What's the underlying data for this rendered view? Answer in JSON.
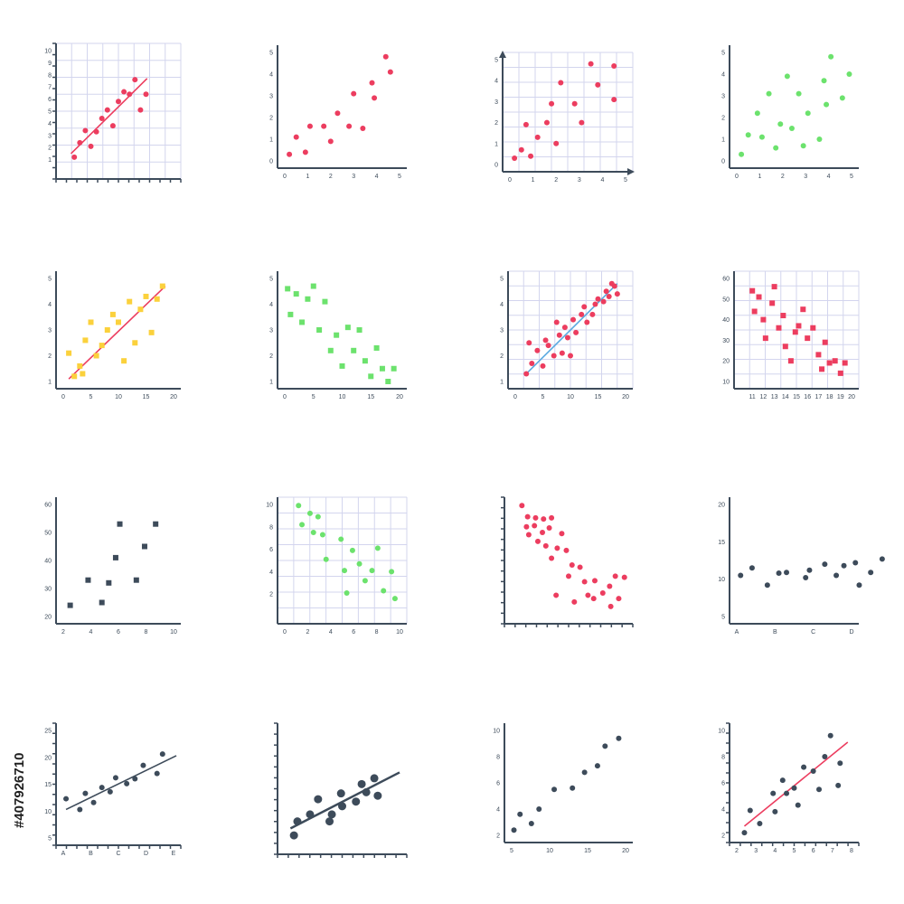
{
  "stock_id": "#407926710",
  "colors": {
    "axis": "#3d4b5a",
    "grid": "#d3d5ee",
    "red": "#ec3d5f",
    "yellow": "#fbd13c",
    "green": "#6ce26d",
    "blue": "#5aa9e0",
    "dark": "#3d4b5a"
  },
  "chart_data": [
    {
      "type": "scatter",
      "marker": "circle",
      "color": "red",
      "grid": true,
      "axis_style": "ticks",
      "xlim": [
        0,
        10
      ],
      "ylim": [
        0,
        10
      ],
      "x_ticks": [],
      "y_ticks": [
        1,
        2,
        3,
        4,
        5,
        6,
        7,
        8,
        9,
        10
      ],
      "x": [
        1,
        1.5,
        2,
        2.5,
        3,
        3.5,
        4,
        4.5,
        5,
        5.5,
        6,
        6.5,
        7,
        7.5
      ],
      "y": [
        1.2,
        2.4,
        3.4,
        2.1,
        3.3,
        4.4,
        5.1,
        3.8,
        5.8,
        6.6,
        6.4,
        7.6,
        5.1,
        6.4
      ],
      "trend": [
        [
          0.7,
          1.5
        ],
        [
          7.6,
          7.7
        ]
      ],
      "trend_color": "red"
    },
    {
      "type": "scatter",
      "marker": "circle",
      "color": "red",
      "grid": false,
      "axis_style": "plain",
      "xlim": [
        0,
        5
      ],
      "ylim": [
        0,
        5
      ],
      "x_ticks": [
        0,
        1,
        2,
        3,
        4,
        5
      ],
      "y_ticks": [
        0,
        1,
        2,
        3,
        4,
        5
      ],
      "x": [
        0.2,
        0.5,
        0.9,
        1.1,
        1.7,
        2.0,
        2.3,
        2.8,
        3.0,
        3.4,
        3.8,
        3.9,
        4.4,
        4.6
      ],
      "y": [
        0.3,
        1.1,
        0.4,
        1.6,
        1.6,
        0.9,
        2.2,
        1.6,
        3.1,
        1.5,
        3.6,
        2.9,
        4.8,
        4.1
      ]
    },
    {
      "type": "scatter",
      "marker": "circle",
      "color": "red",
      "grid": true,
      "axis_style": "arrows",
      "xlim": [
        0,
        5
      ],
      "ylim": [
        0,
        5
      ],
      "x_ticks": [
        0,
        1,
        2,
        3,
        4,
        5
      ],
      "y_ticks": [
        0,
        1,
        2,
        3,
        4,
        5
      ],
      "x": [
        0.2,
        0.5,
        0.7,
        0.9,
        1.2,
        1.6,
        1.8,
        2.0,
        2.2,
        2.8,
        3.1,
        3.5,
        3.8,
        4.5,
        4.5
      ],
      "y": [
        0.3,
        0.7,
        1.9,
        0.4,
        1.3,
        2.0,
        2.9,
        1.0,
        3.9,
        2.9,
        2.0,
        4.8,
        3.8,
        4.7,
        3.1
      ]
    },
    {
      "type": "scatter",
      "marker": "circle",
      "color": "green",
      "grid": false,
      "axis_style": "plain",
      "xlim": [
        0,
        5
      ],
      "ylim": [
        0,
        5
      ],
      "x_ticks": [
        0,
        1,
        2,
        3,
        4,
        5
      ],
      "y_ticks": [
        0,
        1,
        2,
        3,
        4,
        5
      ],
      "x": [
        0.2,
        0.5,
        0.9,
        1.1,
        1.4,
        1.7,
        1.9,
        2.2,
        2.4,
        2.7,
        2.9,
        3.1,
        3.6,
        3.8,
        3.9,
        4.1,
        4.6,
        4.9
      ],
      "y": [
        0.3,
        1.2,
        2.2,
        1.1,
        3.1,
        0.6,
        1.7,
        3.9,
        1.5,
        3.1,
        0.7,
        2.2,
        1.0,
        3.7,
        2.6,
        4.8,
        2.9,
        4.0
      ]
    },
    {
      "type": "scatter",
      "marker": "square",
      "color": "yellow",
      "grid": false,
      "axis_style": "plain",
      "xlim": [
        0,
        20
      ],
      "ylim": [
        1,
        5
      ],
      "x_ticks": [
        0,
        5,
        10,
        15,
        20
      ],
      "y_ticks": [
        1,
        2,
        3,
        4,
        5
      ],
      "x": [
        1,
        2,
        3,
        3.5,
        4,
        5,
        6,
        7,
        8,
        9,
        10,
        11,
        12,
        13,
        14,
        15,
        16,
        17,
        18
      ],
      "y": [
        2.1,
        1.2,
        1.6,
        1.3,
        2.6,
        3.3,
        2.0,
        2.4,
        3.0,
        3.6,
        3.3,
        1.8,
        4.1,
        2.5,
        3.8,
        4.3,
        2.9,
        4.2,
        4.7
      ],
      "trend": [
        [
          1,
          1.1
        ],
        [
          18.5,
          4.7
        ]
      ],
      "trend_color": "red"
    },
    {
      "type": "scatter",
      "marker": "square",
      "color": "green",
      "grid": false,
      "axis_style": "plain",
      "xlim": [
        0,
        20
      ],
      "ylim": [
        1,
        5
      ],
      "x_ticks": [
        0,
        5,
        10,
        15,
        20
      ],
      "y_ticks": [
        1,
        2,
        3,
        4,
        5
      ],
      "x": [
        0.5,
        1,
        2,
        3,
        4,
        5,
        6,
        7,
        8,
        9,
        10,
        11,
        12,
        13,
        14,
        15,
        16,
        17,
        18,
        19
      ],
      "y": [
        4.6,
        3.6,
        4.4,
        3.3,
        4.2,
        4.7,
        3.0,
        4.1,
        2.2,
        2.8,
        1.6,
        3.1,
        2.2,
        3.0,
        1.8,
        1.2,
        2.3,
        1.5,
        1.0,
        1.5
      ]
    },
    {
      "type": "scatter",
      "marker": "circle",
      "color": "red",
      "grid": true,
      "axis_style": "plain",
      "xlim": [
        0,
        20
      ],
      "ylim": [
        1,
        5
      ],
      "x_ticks": [
        0,
        5,
        10,
        15,
        20
      ],
      "y_ticks": [
        1,
        2,
        3,
        4,
        5
      ],
      "x": [
        2,
        2.5,
        3,
        4,
        5,
        5.5,
        6,
        7,
        7.5,
        8,
        8.5,
        9,
        9.5,
        10,
        10.5,
        11,
        12,
        12.5,
        13,
        14,
        14.5,
        15,
        16,
        16.5,
        17,
        17.5,
        18,
        18.5
      ],
      "y": [
        1.3,
        2.5,
        1.7,
        2.2,
        1.6,
        2.6,
        2.4,
        2.0,
        3.3,
        2.8,
        2.1,
        3.1,
        2.7,
        2.0,
        3.4,
        2.9,
        3.6,
        3.9,
        3.3,
        3.6,
        4.0,
        4.2,
        4.1,
        4.5,
        4.3,
        4.8,
        4.7,
        4.4
      ],
      "trend": [
        [
          2,
          1.3
        ],
        [
          18.5,
          4.8
        ]
      ],
      "trend_color": "blue"
    },
    {
      "type": "scatter",
      "marker": "square",
      "color": "red",
      "grid": true,
      "axis_style": "plain",
      "xlim": [
        10,
        20
      ],
      "ylim": [
        10,
        60
      ],
      "x_ticks": [
        11,
        12,
        13,
        14,
        15,
        16,
        17,
        18,
        19,
        20
      ],
      "y_ticks": [
        10,
        20,
        30,
        40,
        50,
        60
      ],
      "x": [
        11,
        11.2,
        11.6,
        12,
        12.2,
        12.8,
        13,
        13.4,
        13.8,
        14,
        14.5,
        14.9,
        15.2,
        15.6,
        16,
        16.5,
        17,
        17.3,
        17.6,
        18,
        18.5,
        19,
        19.4
      ],
      "y": [
        54,
        44,
        51,
        40,
        31,
        48,
        56,
        36,
        42,
        27,
        20,
        34,
        37,
        45,
        31,
        36,
        23,
        16,
        29,
        19,
        20,
        14,
        19
      ]
    },
    {
      "type": "scatter",
      "marker": "square",
      "color": "dark",
      "grid": false,
      "axis_style": "plain",
      "xlim": [
        2,
        10
      ],
      "ylim": [
        20,
        60
      ],
      "x_ticks": [
        2,
        4,
        6,
        8,
        10
      ],
      "y_ticks": [
        20,
        30,
        40,
        50,
        60
      ],
      "x": [
        2.5,
        3.8,
        4.8,
        5.3,
        5.8,
        6.1,
        7.3,
        7.9,
        8.7
      ],
      "y": [
        24,
        33,
        25,
        32,
        41,
        53,
        33,
        45,
        53
      ]
    },
    {
      "type": "scatter",
      "marker": "circle",
      "color": "green",
      "grid": true,
      "axis_style": "plain",
      "xlim": [
        0,
        10
      ],
      "ylim": [
        0,
        10
      ],
      "x_ticks": [
        0,
        2,
        4,
        6,
        8,
        10
      ],
      "y_ticks": [
        2,
        4,
        6,
        8,
        10
      ],
      "x": [
        1.2,
        1.5,
        2.2,
        2.5,
        2.9,
        3.3,
        3.6,
        4.9,
        5.2,
        5.4,
        5.9,
        6.5,
        7,
        7.6,
        8.1,
        8.6,
        9.3,
        9.6
      ],
      "y": [
        9.9,
        8.2,
        9.2,
        7.5,
        8.9,
        7.3,
        5.1,
        6.9,
        4.1,
        2.1,
        5.9,
        4.7,
        3.2,
        4.1,
        6.1,
        2.3,
        4.0,
        1.6
      ]
    },
    {
      "type": "scatter",
      "marker": "circle",
      "color": "red",
      "grid": false,
      "axis_style": "ticks",
      "xlim": [
        0,
        10
      ],
      "ylim": [
        0,
        10
      ],
      "x_ticks": [],
      "y_ticks": [],
      "x": [
        0.9,
        1.4,
        2.1,
        2.8,
        3.5,
        1.3,
        2.0,
        2.7,
        3.3,
        4.4,
        1.5,
        2.3,
        3.0,
        4.0,
        4.8,
        3.5,
        5.3,
        6.0,
        5.0,
        6.4,
        7.3,
        8.0,
        8.6,
        9.1,
        3.9,
        5.5,
        6.7,
        8.7,
        7.2,
        9.4,
        9.9
      ],
      "y": [
        9.9,
        8.9,
        8.8,
        8.7,
        8.8,
        8.0,
        8.1,
        7.5,
        7.9,
        7.4,
        7.3,
        6.7,
        6.3,
        6.1,
        5.9,
        5.2,
        4.6,
        4.4,
        3.6,
        3.1,
        3.2,
        2.1,
        2.7,
        3.6,
        1.9,
        1.3,
        1.9,
        0.9,
        1.6,
        1.6,
        3.5
      ]
    },
    {
      "type": "scatter",
      "marker": "circle",
      "color": "dark",
      "grid": false,
      "axis_style": "plain",
      "xlim": [
        "A",
        "D"
      ],
      "ylim": [
        5,
        20
      ],
      "x_ticks": [
        "A",
        "B",
        "C",
        "D"
      ],
      "y_ticks": [
        5,
        10,
        15,
        20
      ],
      "x": [
        0.1,
        0.4,
        0.8,
        1.1,
        1.3,
        1.8,
        1.9,
        2.3,
        2.6,
        2.8,
        3.1,
        3.2,
        3.5,
        3.8
      ],
      "y": [
        10.5,
        11.5,
        9.2,
        10.8,
        10.9,
        10.2,
        11.2,
        12.0,
        10.5,
        11.8,
        12.2,
        9.2,
        10.9,
        12.7
      ]
    },
    {
      "type": "scatter",
      "marker": "circle",
      "color": "dark",
      "grid": false,
      "axis_style": "ticks",
      "xlim": [
        "A",
        "E"
      ],
      "ylim": [
        5,
        25
      ],
      "x_ticks": [
        "A",
        "B",
        "C",
        "D",
        "E"
      ],
      "y_ticks": [
        5,
        10,
        15,
        20,
        25
      ],
      "x": [
        0.1,
        0.6,
        0.8,
        1.1,
        1.4,
        1.7,
        1.9,
        2.3,
        2.6,
        2.9,
        3.4,
        3.6
      ],
      "y": [
        12.3,
        10.3,
        13.3,
        11.6,
        14.4,
        13.6,
        16.2,
        15.1,
        16.0,
        18.5,
        17.0,
        20.6
      ],
      "trend": [
        [
          0.1,
          10.3
        ],
        [
          4.1,
          20.3
        ]
      ],
      "trend_color": "dark"
    },
    {
      "type": "scatter",
      "marker": "circle-lg",
      "color": "dark",
      "grid": false,
      "axis_style": "ticks",
      "xlim": [
        0,
        10
      ],
      "ylim": [
        0,
        10
      ],
      "x_ticks": [],
      "y_ticks": [],
      "x": [
        0.8,
        1.1,
        2.2,
        2.9,
        3.9,
        4.1,
        4.9,
        5.0,
        6.2,
        6.7,
        7.1,
        7.8,
        8.1
      ],
      "y": [
        1.0,
        2.2,
        2.8,
        4.1,
        2.2,
        2.8,
        4.6,
        3.5,
        3.9,
        5.4,
        4.7,
        5.9,
        4.4
      ],
      "trend": [
        [
          0.5,
          1.6
        ],
        [
          10,
          6.4
        ]
      ],
      "trend_color": "dark"
    },
    {
      "type": "scatter",
      "marker": "circle",
      "color": "dark",
      "grid": false,
      "axis_style": "plain",
      "xlim": [
        5,
        20
      ],
      "ylim": [
        2,
        10
      ],
      "x_ticks": [
        5,
        10,
        15,
        20
      ],
      "y_ticks": [
        2,
        4,
        6,
        8,
        10
      ],
      "x": [
        5.3,
        6.1,
        7.6,
        8.6,
        10.6,
        13.0,
        14.6,
        16.3,
        17.3,
        19.1
      ],
      "y": [
        2.4,
        3.6,
        2.9,
        4.0,
        5.5,
        5.6,
        6.8,
        7.3,
        8.8,
        9.4
      ]
    },
    {
      "type": "scatter",
      "marker": "circle",
      "color": "dark",
      "grid": false,
      "axis_style": "ticks",
      "xlim": [
        2,
        8
      ],
      "ylim": [
        2,
        10
      ],
      "x_ticks": [
        2,
        3,
        4,
        5,
        6,
        7,
        8
      ],
      "y_ticks": [
        2,
        4,
        6,
        8,
        10
      ],
      "x": [
        2.4,
        2.7,
        3.2,
        3.9,
        4.0,
        4.4,
        4.6,
        5.0,
        5.2,
        5.5,
        6.0,
        6.3,
        6.6,
        6.9,
        7.3,
        7.4
      ],
      "y": [
        2.2,
        3.9,
        2.9,
        5.2,
        3.8,
        6.2,
        5.2,
        5.6,
        4.3,
        7.2,
        6.9,
        5.5,
        8.0,
        9.6,
        5.8,
        7.5
      ],
      "trend": [
        [
          2.4,
          2.7
        ],
        [
          7.8,
          9.1
        ]
      ],
      "trend_color": "red"
    }
  ]
}
